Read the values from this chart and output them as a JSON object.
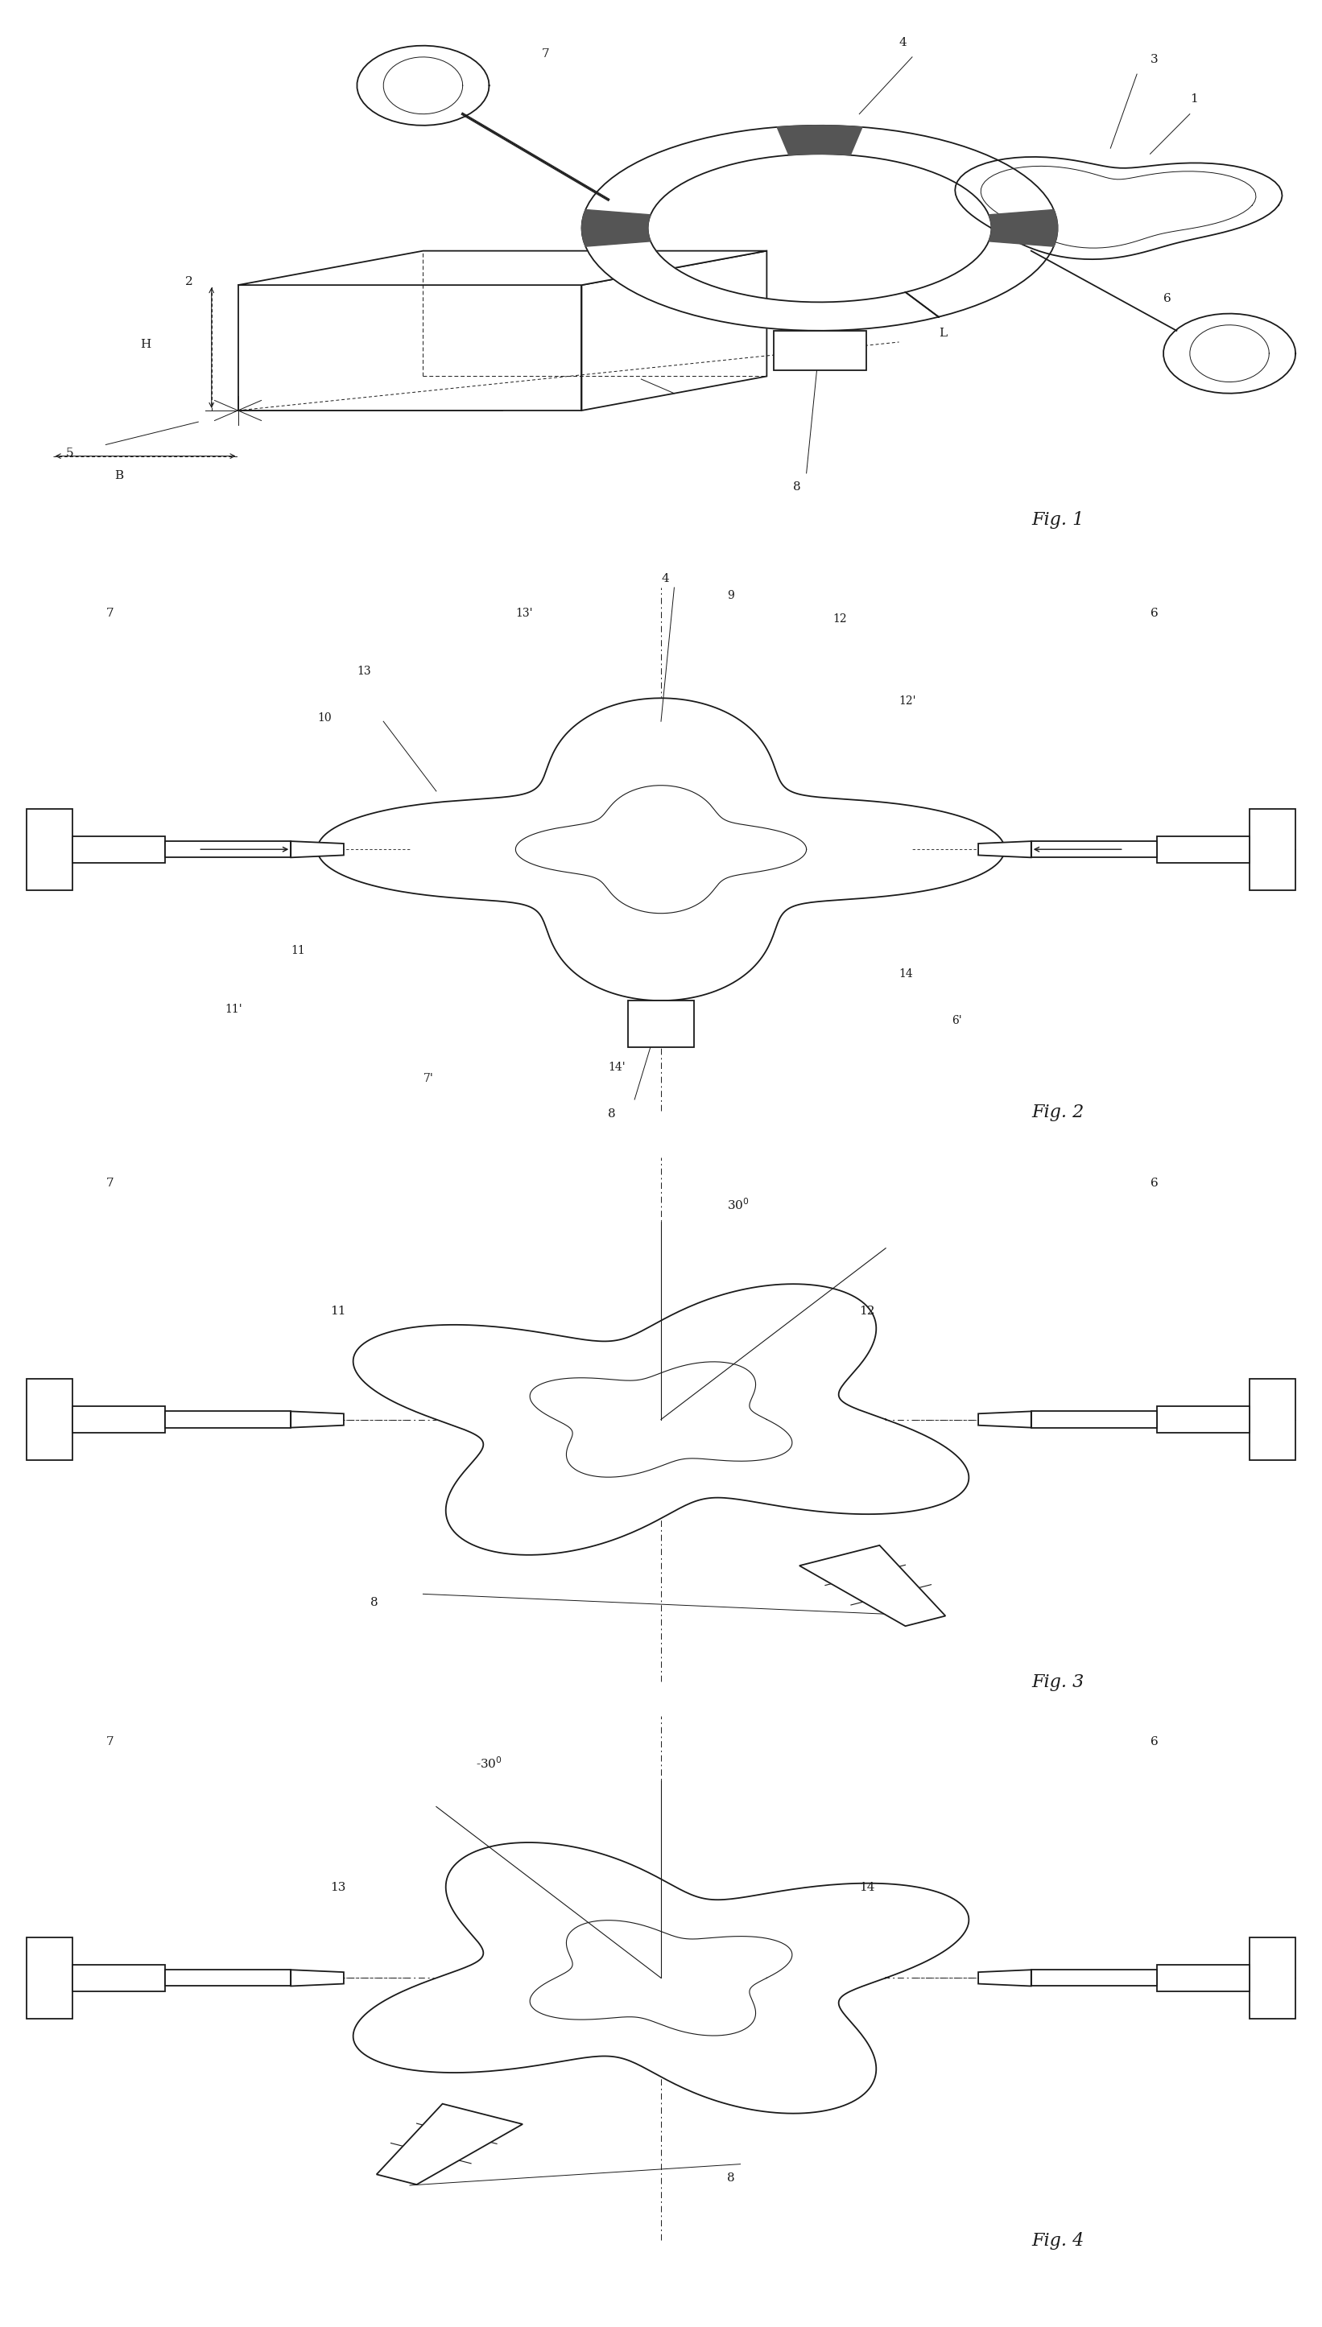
{
  "bg_color": "#ffffff",
  "line_color": "#1a1a1a",
  "fig_width": 16.42,
  "fig_height": 28.91,
  "fig_labels": [
    "Fig. 1",
    "Fig. 2",
    "Fig. 3",
    "Fig. 4"
  ],
  "fig_label_fontsize": 16
}
